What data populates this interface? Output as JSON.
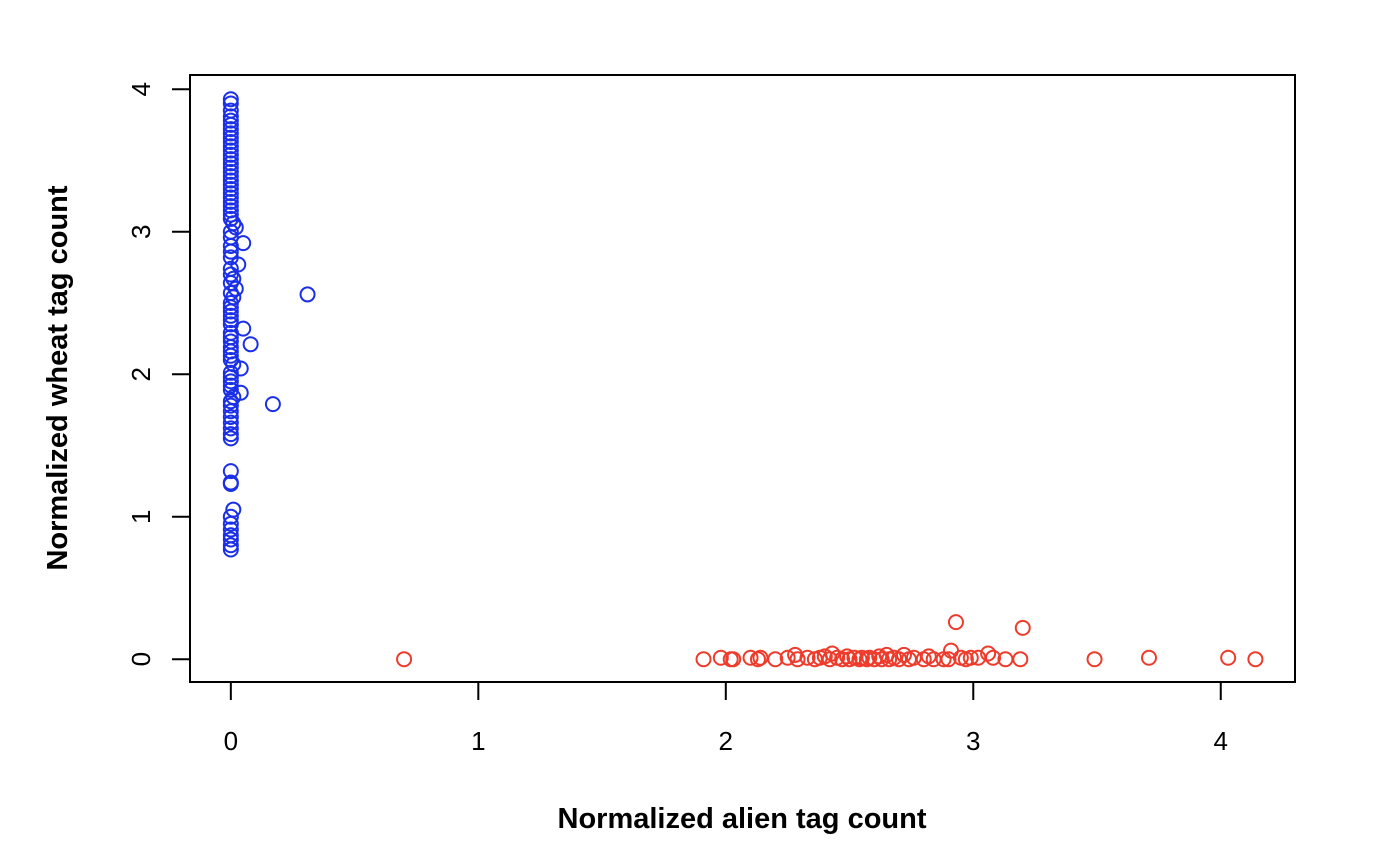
{
  "chart_data": {
    "type": "scatter",
    "title": "",
    "xlabel": "Normalized alien tag count",
    "ylabel": "Normalized wheat tag count",
    "xlim": [
      -0.165,
      4.3
    ],
    "ylim": [
      -0.16,
      4.1
    ],
    "xticks": [
      0,
      1,
      2,
      3,
      4
    ],
    "yticks": [
      0,
      1,
      2,
      3,
      4
    ],
    "grid": false,
    "legend": "none",
    "series": [
      {
        "color": "#1a2fe6",
        "marker": "open-circle",
        "points": [
          [
            0.0,
            3.93
          ],
          [
            0.0,
            3.9
          ],
          [
            0.0,
            3.85
          ],
          [
            0.0,
            3.81
          ],
          [
            0.0,
            3.78
          ],
          [
            0.0,
            3.75
          ],
          [
            0.0,
            3.72
          ],
          [
            0.0,
            3.69
          ],
          [
            0.0,
            3.66
          ],
          [
            0.0,
            3.63
          ],
          [
            0.0,
            3.6
          ],
          [
            0.0,
            3.57
          ],
          [
            0.0,
            3.54
          ],
          [
            0.0,
            3.51
          ],
          [
            0.0,
            3.48
          ],
          [
            0.0,
            3.45
          ],
          [
            0.0,
            3.42
          ],
          [
            0.0,
            3.39
          ],
          [
            0.0,
            3.36
          ],
          [
            0.0,
            3.33
          ],
          [
            0.0,
            3.3
          ],
          [
            0.0,
            3.27
          ],
          [
            0.0,
            3.24
          ],
          [
            0.0,
            3.21
          ],
          [
            0.0,
            3.18
          ],
          [
            0.0,
            3.15
          ],
          [
            0.0,
            3.12
          ],
          [
            0.0,
            3.09
          ],
          [
            0.01,
            3.06
          ],
          [
            0.02,
            3.03
          ],
          [
            0.0,
            3.0
          ],
          [
            0.0,
            2.96
          ],
          [
            0.05,
            2.92
          ],
          [
            0.0,
            2.9
          ],
          [
            0.0,
            2.86
          ],
          [
            0.0,
            2.82
          ],
          [
            0.03,
            2.77
          ],
          [
            0.0,
            2.74
          ],
          [
            0.0,
            2.7
          ],
          [
            0.01,
            2.67
          ],
          [
            0.0,
            2.64
          ],
          [
            0.02,
            2.6
          ],
          [
            0.0,
            2.57
          ],
          [
            0.01,
            2.54
          ],
          [
            0.0,
            2.5
          ],
          [
            0.0,
            2.47
          ],
          [
            0.0,
            2.44
          ],
          [
            0.0,
            2.41
          ],
          [
            0.0,
            2.38
          ],
          [
            0.0,
            2.35
          ],
          [
            0.05,
            2.32
          ],
          [
            0.0,
            2.29
          ],
          [
            0.0,
            2.26
          ],
          [
            0.0,
            2.23
          ],
          [
            0.08,
            2.21
          ],
          [
            0.0,
            2.19
          ],
          [
            0.0,
            2.16
          ],
          [
            0.0,
            2.13
          ],
          [
            0.0,
            2.1
          ],
          [
            0.01,
            2.07
          ],
          [
            0.04,
            2.04
          ],
          [
            0.0,
            2.01
          ],
          [
            0.0,
            1.98
          ],
          [
            0.0,
            1.95
          ],
          [
            0.0,
            1.92
          ],
          [
            0.0,
            1.89
          ],
          [
            0.04,
            1.87
          ],
          [
            0.01,
            1.84
          ],
          [
            0.0,
            1.81
          ],
          [
            0.0,
            1.78
          ],
          [
            0.0,
            1.74
          ],
          [
            0.0,
            1.7
          ],
          [
            0.0,
            1.66
          ],
          [
            0.0,
            1.62
          ],
          [
            0.0,
            1.58
          ],
          [
            0.0,
            1.55
          ],
          [
            0.0,
            1.32
          ],
          [
            0.0,
            1.24
          ],
          [
            0.0,
            1.23
          ],
          [
            0.01,
            1.05
          ],
          [
            0.0,
            1.0
          ],
          [
            0.0,
            0.95
          ],
          [
            0.0,
            0.91
          ],
          [
            0.0,
            0.87
          ],
          [
            0.0,
            0.84
          ],
          [
            0.0,
            0.8
          ],
          [
            0.0,
            0.77
          ],
          [
            0.31,
            2.56
          ],
          [
            0.17,
            1.79
          ]
        ]
      },
      {
        "color": "#ee3b2b",
        "marker": "open-circle",
        "points": [
          [
            0.7,
            0.0
          ],
          [
            1.91,
            0.0
          ],
          [
            1.98,
            0.01
          ],
          [
            2.02,
            0.0
          ],
          [
            2.03,
            0.0
          ],
          [
            2.1,
            0.01
          ],
          [
            2.13,
            0.0
          ],
          [
            2.14,
            0.01
          ],
          [
            2.2,
            0.0
          ],
          [
            2.25,
            0.01
          ],
          [
            2.28,
            0.03
          ],
          [
            2.29,
            0.0
          ],
          [
            2.33,
            0.01
          ],
          [
            2.36,
            0.0
          ],
          [
            2.38,
            0.01
          ],
          [
            2.4,
            0.02
          ],
          [
            2.42,
            0.0
          ],
          [
            2.43,
            0.04
          ],
          [
            2.45,
            0.01
          ],
          [
            2.47,
            0.0
          ],
          [
            2.49,
            0.02
          ],
          [
            2.5,
            0.0
          ],
          [
            2.52,
            0.01
          ],
          [
            2.54,
            0.0
          ],
          [
            2.55,
            0.01
          ],
          [
            2.57,
            0.0
          ],
          [
            2.58,
            0.01
          ],
          [
            2.6,
            0.0
          ],
          [
            2.62,
            0.02
          ],
          [
            2.63,
            0.0
          ],
          [
            2.65,
            0.03
          ],
          [
            2.66,
            0.0
          ],
          [
            2.68,
            0.01
          ],
          [
            2.7,
            0.0
          ],
          [
            2.72,
            0.03
          ],
          [
            2.74,
            0.0
          ],
          [
            2.76,
            0.01
          ],
          [
            2.8,
            0.0
          ],
          [
            2.82,
            0.02
          ],
          [
            2.84,
            0.0
          ],
          [
            2.88,
            0.0
          ],
          [
            2.9,
            0.0
          ],
          [
            2.91,
            0.06
          ],
          [
            2.93,
            0.26
          ],
          [
            2.95,
            0.01
          ],
          [
            2.97,
            0.0
          ],
          [
            2.99,
            0.01
          ],
          [
            3.02,
            0.01
          ],
          [
            3.06,
            0.04
          ],
          [
            3.08,
            0.01
          ],
          [
            3.13,
            0.0
          ],
          [
            3.19,
            0.0
          ],
          [
            3.2,
            0.22
          ],
          [
            3.49,
            0.0
          ],
          [
            3.71,
            0.01
          ],
          [
            4.03,
            0.01
          ],
          [
            4.14,
            0.0
          ]
        ]
      }
    ]
  }
}
